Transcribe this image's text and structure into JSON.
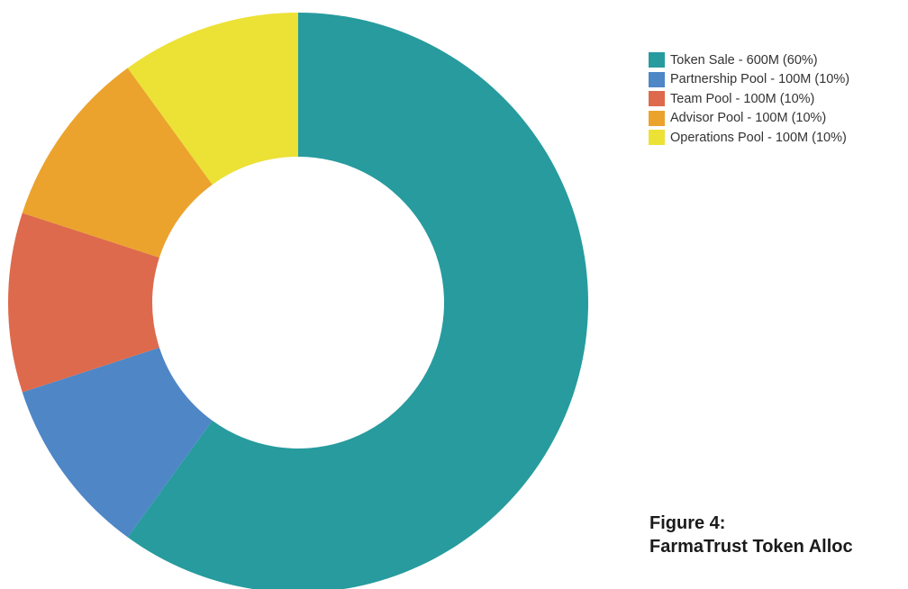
{
  "chart_data": {
    "type": "pie",
    "variant": "donut",
    "title": "",
    "series": [
      {
        "name": "Token Sale",
        "value": 600,
        "color": "#279b9e"
      },
      {
        "name": "Partnership Pool",
        "value": 100,
        "color": "#4e86c6"
      },
      {
        "name": "Team Pool",
        "value": 100,
        "color": "#dd6a4c"
      },
      {
        "name": "Advisor Pool",
        "value": 100,
        "color": "#eba32e"
      },
      {
        "name": "Operations Pool",
        "value": 100,
        "color": "#ece135"
      }
    ],
    "legend": {
      "placement": "top-right",
      "entries": [
        "Token Sale - 600M (60%)",
        "Partnership Pool - 100M (10%)",
        "Team Pool - 100M (10%)",
        "Advisor Pool - 100M (10%)",
        "Operations Pool - 100M (10%)"
      ]
    }
  },
  "caption": {
    "figure_label": "Figure 4:",
    "title": "FarmaTrust Token Alloc"
  }
}
